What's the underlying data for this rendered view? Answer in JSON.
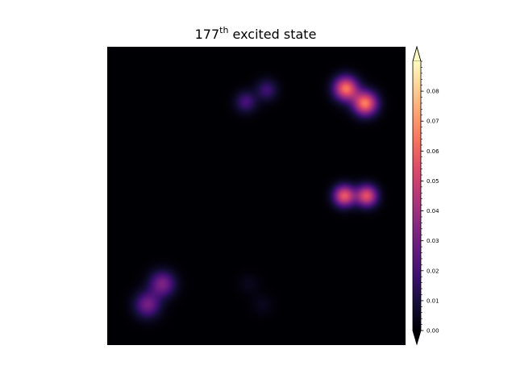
{
  "chart_data": {
    "type": "heatmap",
    "title": {
      "prefix": "177",
      "superscript": "th",
      "suffix": " excited state"
    },
    "xlabel": "",
    "ylabel": "",
    "axes_visible": false,
    "colormap": "magma",
    "colorbar": {
      "vmin": 0.0,
      "vmax": 0.09,
      "extend": "both",
      "ticks": [
        "0.00",
        "0.01",
        "0.02",
        "0.03",
        "0.04",
        "0.05",
        "0.06",
        "0.07",
        "0.08"
      ],
      "tick_values": [
        0.0,
        0.01,
        0.02,
        0.03,
        0.04,
        0.05,
        0.06,
        0.07,
        0.08
      ],
      "minor_step": 0.002
    },
    "grid_extent": [
      0,
      1
    ],
    "blobs": [
      {
        "x": 0.135,
        "y": 0.135,
        "amplitude": 0.03,
        "sigma": 0.03
      },
      {
        "x": 0.185,
        "y": 0.205,
        "amplitude": 0.032,
        "sigma": 0.03
      },
      {
        "x": 0.465,
        "y": 0.815,
        "amplitude": 0.02,
        "sigma": 0.025
      },
      {
        "x": 0.535,
        "y": 0.855,
        "amplitude": 0.018,
        "sigma": 0.025
      },
      {
        "x": 0.8,
        "y": 0.86,
        "amplitude": 0.063,
        "sigma": 0.028
      },
      {
        "x": 0.865,
        "y": 0.81,
        "amplitude": 0.065,
        "sigma": 0.028
      },
      {
        "x": 0.795,
        "y": 0.5,
        "amplitude": 0.057,
        "sigma": 0.025
      },
      {
        "x": 0.87,
        "y": 0.5,
        "amplitude": 0.055,
        "sigma": 0.025
      },
      {
        "x": 0.475,
        "y": 0.205,
        "amplitude": 0.004,
        "sigma": 0.025
      },
      {
        "x": 0.52,
        "y": 0.135,
        "amplitude": 0.004,
        "sigma": 0.025
      }
    ]
  }
}
